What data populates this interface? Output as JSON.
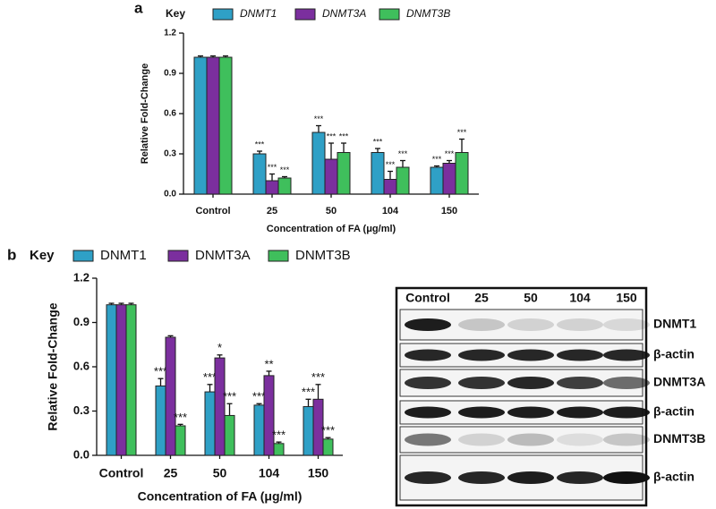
{
  "chart_data": [
    {
      "type": "bar",
      "panel_label": "a",
      "legend_title": "Key",
      "legend_italic": true,
      "x_label": "Concentration of FA (μg/ml)",
      "y_label": "Relative Fold-Change",
      "categories": [
        "Control",
        "25",
        "50",
        "104",
        "150"
      ],
      "series": [
        {
          "name": "DNMT1",
          "color": "#2fa0c6",
          "values": [
            1.02,
            0.3,
            0.46,
            0.31,
            0.2
          ],
          "errors": [
            0.01,
            0.02,
            0.05,
            0.03,
            0.01
          ],
          "annotations": [
            null,
            "***",
            "***",
            "***",
            "***"
          ]
        },
        {
          "name": "DNMT3A",
          "color": "#7b2f9e",
          "values": [
            1.02,
            0.1,
            0.26,
            0.11,
            0.23
          ],
          "errors": [
            0.01,
            0.05,
            0.12,
            0.06,
            0.02
          ],
          "annotations": [
            null,
            "***",
            "***",
            "***",
            "***"
          ]
        },
        {
          "name": "DNMT3B",
          "color": "#3fbf5c",
          "values": [
            1.02,
            0.12,
            0.31,
            0.2,
            0.31
          ],
          "errors": [
            0.01,
            0.01,
            0.07,
            0.05,
            0.1
          ],
          "annotations": [
            null,
            "***",
            "***",
            "***",
            "***"
          ]
        }
      ],
      "ylim": [
        0,
        1.2
      ],
      "yticks": [
        {
          "value": 0,
          "label": "0.0"
        },
        0.3,
        0.6,
        0.9,
        1.2
      ],
      "grid": false
    },
    {
      "type": "bar",
      "panel_label": "b",
      "legend_title": "Key",
      "legend_italic": false,
      "x_label": "Concentration of FA (μg/ml)",
      "y_label": "Relative Fold-Change",
      "categories": [
        "Control",
        "25",
        "50",
        "104",
        "150"
      ],
      "series": [
        {
          "name": "DNMT1",
          "color": "#2fa0c6",
          "values": [
            1.02,
            0.47,
            0.43,
            0.34,
            0.33
          ],
          "errors": [
            0.01,
            0.05,
            0.05,
            0.01,
            0.05
          ],
          "annotations": [
            null,
            "***",
            "***",
            "***",
            "***"
          ]
        },
        {
          "name": "DNMT3A",
          "color": "#7b2f9e",
          "values": [
            1.02,
            0.8,
            0.66,
            0.54,
            0.38
          ],
          "errors": [
            0.01,
            0.01,
            0.02,
            0.03,
            0.1
          ],
          "annotations": [
            null,
            null,
            "*",
            "**",
            "***"
          ]
        },
        {
          "name": "DNMT3B",
          "color": "#3fbf5c",
          "values": [
            1.02,
            0.2,
            0.27,
            0.08,
            0.11
          ],
          "errors": [
            0.01,
            0.01,
            0.08,
            0.01,
            0.01
          ],
          "annotations": [
            null,
            "***",
            "***",
            "***",
            "***"
          ]
        }
      ],
      "ylim": [
        0,
        1.2
      ],
      "yticks": [
        {
          "value": 0,
          "label": "0.0"
        },
        0.3,
        0.6,
        0.9,
        1.2
      ],
      "grid": false
    }
  ],
  "blot": {
    "lanes": [
      "Control",
      "25",
      "50",
      "104",
      "150"
    ],
    "rows": [
      "DNMT1",
      "β-actin",
      "DNMT3A",
      "β-actin",
      "DNMT3B",
      "β-actin"
    ]
  }
}
